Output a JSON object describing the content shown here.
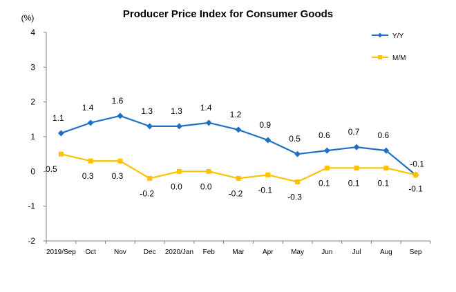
{
  "chart_data": {
    "type": "line",
    "title": "Producer Price Index for Consumer Goods",
    "ylabel": "(%)",
    "ylim": [
      -2,
      4
    ],
    "yticks": [
      -2,
      -1,
      0,
      1,
      2,
      3,
      4
    ],
    "categories": [
      "2019/Sep",
      "Oct",
      "Nov",
      "Dec",
      "2020/Jan",
      "Feb",
      "Mar",
      "Apr",
      "May",
      "Jun",
      "Jul",
      "Aug",
      "Sep"
    ],
    "series": [
      {
        "name": "Y/Y",
        "color": "#1f6fc6",
        "marker": "diamond",
        "values": [
          1.1,
          1.4,
          1.6,
          1.3,
          1.3,
          1.4,
          1.2,
          0.9,
          0.5,
          0.6,
          0.7,
          0.6,
          -0.1
        ],
        "labels": [
          "1.1",
          "1.4",
          "1.6",
          "1.3",
          "1.3",
          "1.4",
          "1.2",
          "0.9",
          "0.5",
          "0.6",
          "0.7",
          "0.6",
          "-0.1"
        ]
      },
      {
        "name": "M/M",
        "color": "#ffc000",
        "marker": "square",
        "values": [
          0.5,
          0.3,
          0.3,
          -0.2,
          0.0,
          0.0,
          -0.2,
          -0.1,
          -0.3,
          0.1,
          0.1,
          0.1,
          -0.1
        ],
        "labels": [
          "0.5",
          "0.3",
          "0.3",
          "-0.2",
          "0.0",
          "0.0",
          "-0.2",
          "-0.1",
          "-0.3",
          "0.1",
          "0.1",
          "0.1",
          "-0.1"
        ]
      }
    ],
    "grid": false,
    "legend": "top-right"
  }
}
